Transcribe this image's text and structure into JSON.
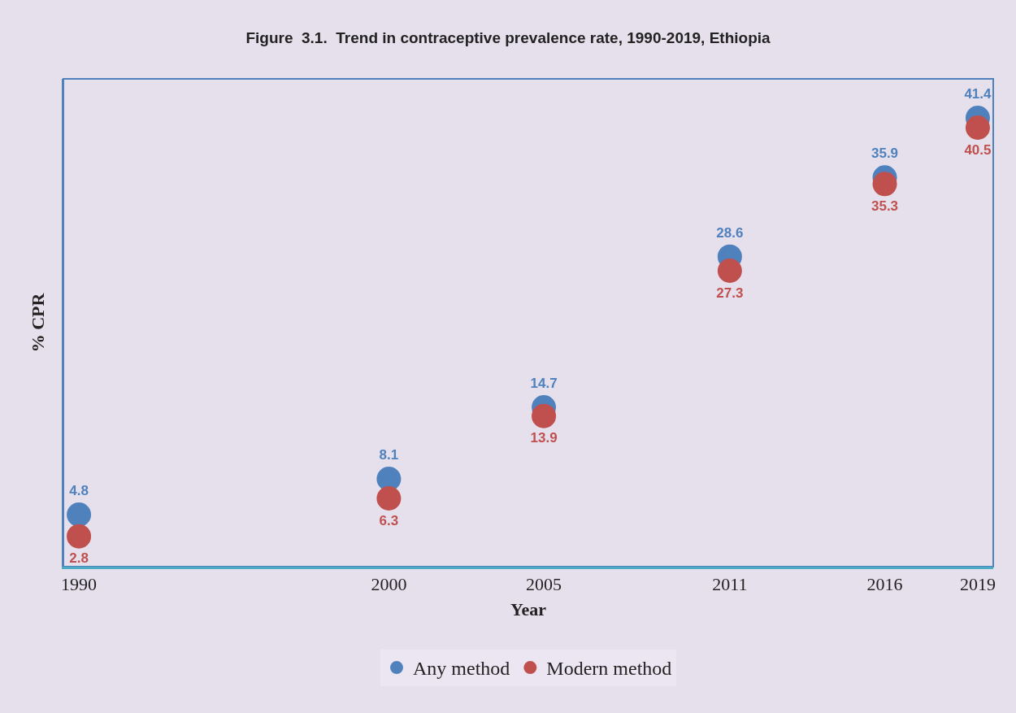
{
  "chart_data": {
    "type": "scatter",
    "title": "Figure  3.1.  Trend in contraceptive prevalence rate, 1990-2019, Ethiopia",
    "xlabel": "Year",
    "ylabel": "% CPR",
    "x": [
      1990,
      2000,
      2005,
      2011,
      2016,
      2019
    ],
    "xlim": [
      1989.5,
      2019.5
    ],
    "xticks": [
      1990,
      2000,
      2005,
      2011,
      2016,
      2019
    ],
    "series": [
      {
        "name": "Any method",
        "color": "#4f81bd",
        "values": [
          4.8,
          8.1,
          14.7,
          28.6,
          35.9,
          41.4
        ]
      },
      {
        "name": "Modern method",
        "color": "#c0504d",
        "values": [
          2.8,
          6.3,
          13.9,
          27.3,
          35.3,
          40.5
        ]
      }
    ],
    "ylim": [
      0,
      45
    ],
    "marker": "circle",
    "data_labels": true,
    "legend": "bottom",
    "grid": false,
    "tick_labels": "x"
  }
}
